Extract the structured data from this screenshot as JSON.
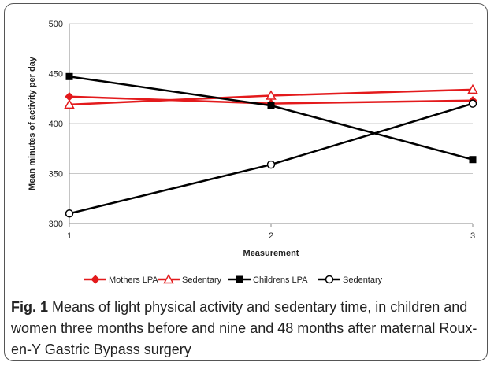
{
  "figure": {
    "label": "Fig. 1",
    "caption": "Means of light physical activity and sedentary time, in children and women three months before and nine and 48 months after maternal Roux-en-Y Gastric Bypass surgery"
  },
  "chart_data": {
    "type": "line",
    "xlabel": "Measurement",
    "ylabel": "Mean minutes of activity per day",
    "x": [
      1,
      2,
      3
    ],
    "xticks": [
      "1",
      "2",
      "3"
    ],
    "ylim": [
      300,
      500
    ],
    "yticks": [
      300,
      350,
      400,
      450,
      500
    ],
    "grid": "horizontal",
    "legend_position": "bottom",
    "series": [
      {
        "name": "Mothers LPA",
        "values": [
          427,
          420,
          423
        ],
        "color": "#e31a1c",
        "marker": "diamond-filled"
      },
      {
        "name": "Sedentary",
        "values": [
          419,
          428,
          434
        ],
        "color": "#e31a1c",
        "marker": "triangle-open"
      },
      {
        "name": "Childrens LPA",
        "values": [
          447,
          418,
          364
        ],
        "color": "#000000",
        "marker": "square-filled"
      },
      {
        "name": "Sedentary",
        "values": [
          310,
          359,
          420
        ],
        "color": "#000000",
        "marker": "circle-open"
      }
    ]
  }
}
